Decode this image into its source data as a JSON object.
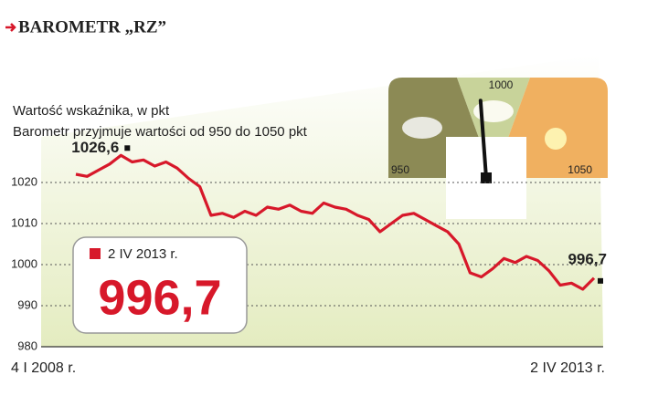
{
  "chart_data": {
    "type": "line",
    "title": "BAROMETR „RZ”",
    "subtitle": [
      "Wartość wskaźnika, w pkt",
      "Barometr przyjmuje wartości od 950 do 1050 pkt"
    ],
    "categories": [
      "4 I 2008 r.",
      null,
      null,
      null,
      null,
      null,
      null,
      null,
      null,
      null,
      null,
      null,
      null,
      null,
      null,
      null,
      null,
      null,
      null,
      null,
      null,
      null,
      null,
      null,
      null,
      null,
      null,
      null,
      null,
      null,
      null,
      null,
      null,
      null,
      null,
      null,
      null,
      null,
      null,
      null,
      null,
      null,
      null,
      null,
      null,
      null,
      "2 IV 2013 r."
    ],
    "values": [
      1022,
      1021.5,
      1023,
      1024.5,
      1026.6,
      1025,
      1025.5,
      1024,
      1025,
      1023.5,
      1021,
      1019,
      1012,
      1012.5,
      1011.5,
      1013,
      1012,
      1014,
      1013.5,
      1014.5,
      1013,
      1012.5,
      1015,
      1014,
      1013.5,
      1012,
      1011,
      1008,
      1010,
      1012,
      1012.5,
      1011,
      1009.5,
      1008,
      1005,
      998,
      997,
      999,
      1001.5,
      1000.5,
      1002,
      1001,
      998.5,
      995,
      995.5,
      994,
      996.7
    ],
    "value_labels": [
      "",
      "",
      "",
      "",
      "1026,6",
      "",
      "",
      "",
      "",
      "",
      "",
      "",
      "",
      "",
      "",
      "",
      "",
      "",
      "",
      "",
      "",
      "",
      "",
      "",
      "",
      "",
      "",
      "",
      "",
      "",
      "",
      "",
      "",
      "",
      "",
      "",
      "",
      "",
      "",
      "",
      "",
      "",
      "",
      "",
      "",
      "",
      "996,7"
    ],
    "color": "#d7182a",
    "ylim": [
      980,
      1030
    ],
    "yticks": [
      980,
      990,
      1000,
      1010,
      1020
    ],
    "grid": true,
    "callout": {
      "date": "2 IV 2013 r.",
      "value": 996.7,
      "label": "996,7"
    },
    "gauge": {
      "ticks": [
        950,
        1000,
        1050
      ],
      "value": 996.7
    }
  }
}
